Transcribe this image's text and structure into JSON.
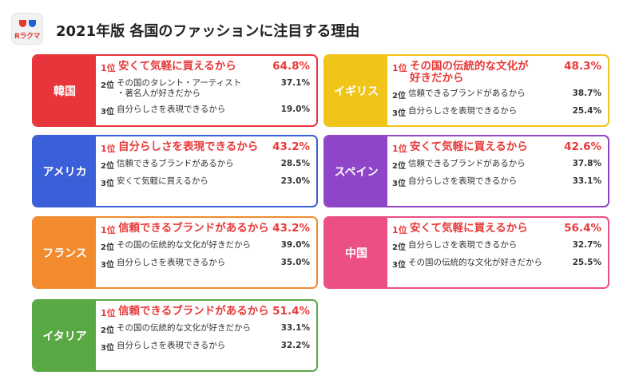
{
  "logo": {
    "text": "Rラクマ"
  },
  "title": "2021年版 各国のファッションに注目する理由",
  "chart_data": {
    "type": "table",
    "title": "2021年版 各国のファッションに注目する理由",
    "unit": "%",
    "countries": [
      {
        "name": "韓国",
        "color": "#e8353b",
        "rankings": [
          {
            "rank": "1位",
            "reason": "安くて気軽に買えるから",
            "value": "64.8%"
          },
          {
            "rank": "2位",
            "reason": "その国のタレント・アーティスト\n・著名人が好きだから",
            "value": "37.1%"
          },
          {
            "rank": "3位",
            "reason": "自分らしさを表現できるから",
            "value": "19.0%"
          }
        ]
      },
      {
        "name": "イギリス",
        "color": "#f0c419",
        "rankings": [
          {
            "rank": "1位",
            "reason": "その国の伝統的な文化が\n好きだから",
            "value": "48.3%"
          },
          {
            "rank": "2位",
            "reason": "信頼できるブランドがあるから",
            "value": "38.7%"
          },
          {
            "rank": "3位",
            "reason": "自分らしさを表現できるから",
            "value": "25.4%"
          }
        ]
      },
      {
        "name": "アメリカ",
        "color": "#3a5fd8",
        "rankings": [
          {
            "rank": "1位",
            "reason": "自分らしさを表現できるから",
            "value": "43.2%"
          },
          {
            "rank": "2位",
            "reason": "信頼できるブランドがあるから",
            "value": "28.5%"
          },
          {
            "rank": "3位",
            "reason": "安くて気軽に買えるから",
            "value": "23.0%"
          }
        ]
      },
      {
        "name": "スペイン",
        "color": "#8f45c8",
        "rankings": [
          {
            "rank": "1位",
            "reason": "安くて気軽に買えるから",
            "value": "42.6%"
          },
          {
            "rank": "2位",
            "reason": "信頼できるブランドがあるから",
            "value": "37.8%"
          },
          {
            "rank": "3位",
            "reason": "自分らしさを表現できるから",
            "value": "33.1%"
          }
        ]
      },
      {
        "name": "フランス",
        "color": "#f28a2e",
        "rankings": [
          {
            "rank": "1位",
            "reason": "信頼できるブランドがあるから",
            "value": "43.2%"
          },
          {
            "rank": "2位",
            "reason": "その国の伝統的な文化が好きだから",
            "value": "39.0%"
          },
          {
            "rank": "3位",
            "reason": "自分らしさを表現できるから",
            "value": "35.0%"
          }
        ]
      },
      {
        "name": "中国",
        "color": "#ec4f84",
        "rankings": [
          {
            "rank": "1位",
            "reason": "安くて気軽に買えるから",
            "value": "56.4%"
          },
          {
            "rank": "2位",
            "reason": "自分らしさを表現できるから",
            "value": "32.7%"
          },
          {
            "rank": "3位",
            "reason": "その国の伝統的な文化が好きだから",
            "value": "25.5%"
          }
        ]
      },
      {
        "name": "イタリア",
        "color": "#58a944",
        "rankings": [
          {
            "rank": "1位",
            "reason": "信頼できるブランドがあるから",
            "value": "51.4%"
          },
          {
            "rank": "2位",
            "reason": "その国の伝統的な文化が好きだから",
            "value": "33.1%"
          },
          {
            "rank": "3位",
            "reason": "自分らしさを表現できるから",
            "value": "32.2%"
          }
        ]
      }
    ]
  }
}
